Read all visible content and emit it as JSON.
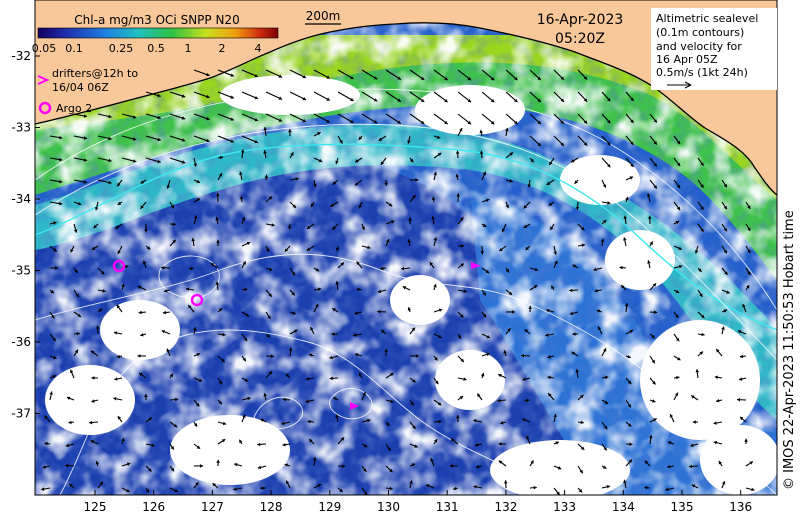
{
  "colorbar": {
    "title": "Chl-a mg/m3 OCi SNPP N20",
    "ticks": [
      "0.05",
      "0.1",
      "0.25",
      "0.5",
      "1",
      "2",
      "4"
    ]
  },
  "scale_bar": {
    "label": "200m"
  },
  "datetime": {
    "date": "16-Apr-2023",
    "time": "05:20Z"
  },
  "info_box": {
    "lines": [
      "Altimetric sealevel",
      "(0.1m contours)",
      "and velocity for",
      "16 Apr 05Z",
      "0.5m/s (1kt 24h)"
    ]
  },
  "legend": {
    "drifters": [
      "drifters@12h to",
      "16/04 06Z"
    ],
    "argo": "Argo 2"
  },
  "axes": {
    "lat_labels": [
      "-32",
      "-33",
      "-34",
      "-35",
      "-36",
      "-37"
    ],
    "lon_labels": [
      "125",
      "126",
      "127",
      "128",
      "129",
      "130",
      "131",
      "132",
      "133",
      "134",
      "135",
      "136"
    ]
  },
  "credit": "© IMOS 22-Apr-2023 11:50:53 Hobart time",
  "colors": {
    "land": "#f8c89a",
    "deep_blue": "#1c3fb0",
    "mid_blue": "#2d73d6",
    "cyan": "#2fb8c8",
    "green": "#3fc24a",
    "yellow_green": "#9ad520",
    "argo": "#ff00ff",
    "drifter": "#ff00ff"
  }
}
